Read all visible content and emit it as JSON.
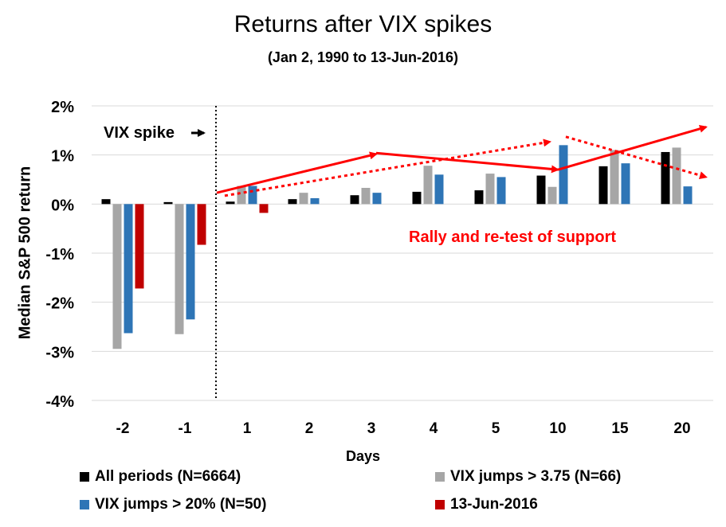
{
  "chart_data": {
    "type": "bar",
    "title": "Returns after VIX spikes",
    "subtitle": "(Jan 2, 1990 to 13-Jun-2016)",
    "xlabel": "Days",
    "ylabel": "Median S&P 500 return",
    "categories": [
      "-2",
      "-1",
      "1",
      "2",
      "3",
      "4",
      "5",
      "10",
      "15",
      "20"
    ],
    "ylim": [
      -4,
      2
    ],
    "yticks": [
      "2%",
      "1%",
      "0%",
      "-1%",
      "-2%",
      "-3%",
      "-4%"
    ],
    "grid": true,
    "legend_position": "bottom",
    "series": [
      {
        "name": "All periods (N=6664)",
        "color": "#000000",
        "values": [
          0.1,
          0.04,
          0.05,
          0.1,
          0.18,
          0.25,
          0.28,
          0.58,
          0.77,
          1.06
        ]
      },
      {
        "name": "VIX jumps > 3.75 (N=66)",
        "color": "#a6a6a6",
        "values": [
          -2.95,
          -2.65,
          0.37,
          0.23,
          0.33,
          0.78,
          0.62,
          0.35,
          1.1,
          1.15
        ]
      },
      {
        "name": "VIX jumps > 20% (N=50)",
        "color": "#2e75b6",
        "values": [
          -2.63,
          -2.35,
          0.37,
          0.12,
          0.23,
          0.6,
          0.55,
          1.2,
          0.83,
          0.36
        ]
      },
      {
        "name": "13-Jun-2016",
        "color": "#c00000",
        "values": [
          -1.72,
          -0.83,
          -0.18,
          null,
          null,
          null,
          null,
          null,
          null,
          null
        ]
      }
    ],
    "annotations": {
      "spike_label": "VIX spike",
      "spike_arrow": "→",
      "rally_text": "Rally and re-test of support",
      "rally_color": "#ff0000"
    }
  }
}
